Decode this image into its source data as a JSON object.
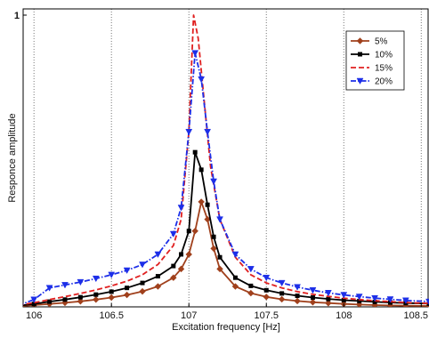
{
  "chart_data": {
    "type": "line",
    "title": "",
    "xlabel": "Excitation frequency [Hz]",
    "ylabel": "Responce amplitude",
    "xlim": [
      105.93,
      108.55
    ],
    "ylim": [
      0,
      1
    ],
    "x_ticks": [
      "106",
      "106.5",
      "107",
      "107.5",
      "108",
      "108.5"
    ],
    "y_ticks": [
      "1"
    ],
    "grid": "vertical-dotted",
    "legend": "top-right",
    "series": [
      {
        "name": "5%",
        "color": "#a0401c",
        "dash": "solid",
        "marker": "diamond",
        "points": [
          [
            105.9,
            0.002
          ],
          [
            106.0,
            0.006
          ],
          [
            106.1,
            0.01
          ],
          [
            106.2,
            0.014
          ],
          [
            106.3,
            0.019
          ],
          [
            106.4,
            0.025
          ],
          [
            106.5,
            0.032
          ],
          [
            106.6,
            0.041
          ],
          [
            106.7,
            0.053
          ],
          [
            106.8,
            0.07
          ],
          [
            106.9,
            0.1
          ],
          [
            106.95,
            0.13
          ],
          [
            107.0,
            0.18
          ],
          [
            107.04,
            0.26
          ],
          [
            107.08,
            0.36
          ],
          [
            107.12,
            0.3
          ],
          [
            107.16,
            0.2
          ],
          [
            107.2,
            0.13
          ],
          [
            107.3,
            0.07
          ],
          [
            107.4,
            0.047
          ],
          [
            107.5,
            0.034
          ],
          [
            107.6,
            0.026
          ],
          [
            107.7,
            0.02
          ],
          [
            107.8,
            0.016
          ],
          [
            107.9,
            0.013
          ],
          [
            108.0,
            0.01
          ],
          [
            108.1,
            0.008
          ],
          [
            108.2,
            0.006
          ],
          [
            108.3,
            0.005
          ],
          [
            108.4,
            0.004
          ],
          [
            108.55,
            0.003
          ]
        ]
      },
      {
        "name": "10%",
        "color": "#000000",
        "dash": "solid",
        "marker": "square",
        "points": [
          [
            105.9,
            0.004
          ],
          [
            106.0,
            0.01
          ],
          [
            106.1,
            0.018
          ],
          [
            106.2,
            0.025
          ],
          [
            106.3,
            0.033
          ],
          [
            106.4,
            0.042
          ],
          [
            106.5,
            0.052
          ],
          [
            106.6,
            0.065
          ],
          [
            106.7,
            0.082
          ],
          [
            106.8,
            0.105
          ],
          [
            106.9,
            0.14
          ],
          [
            106.95,
            0.18
          ],
          [
            107.0,
            0.26
          ],
          [
            107.04,
            0.53
          ],
          [
            107.08,
            0.47
          ],
          [
            107.12,
            0.35
          ],
          [
            107.16,
            0.24
          ],
          [
            107.2,
            0.17
          ],
          [
            107.3,
            0.1
          ],
          [
            107.4,
            0.072
          ],
          [
            107.5,
            0.057
          ],
          [
            107.6,
            0.046
          ],
          [
            107.7,
            0.038
          ],
          [
            107.8,
            0.032
          ],
          [
            107.9,
            0.027
          ],
          [
            108.0,
            0.023
          ],
          [
            108.1,
            0.02
          ],
          [
            108.2,
            0.017
          ],
          [
            108.3,
            0.015
          ],
          [
            108.4,
            0.013
          ],
          [
            108.55,
            0.011
          ]
        ]
      },
      {
        "name": "15%",
        "color": "#e02020",
        "dash": "dashed",
        "marker": "none",
        "points": [
          [
            105.9,
            0.006
          ],
          [
            106.0,
            0.014
          ],
          [
            106.1,
            0.025
          ],
          [
            106.2,
            0.035
          ],
          [
            106.3,
            0.046
          ],
          [
            106.4,
            0.058
          ],
          [
            106.5,
            0.072
          ],
          [
            106.6,
            0.088
          ],
          [
            106.7,
            0.11
          ],
          [
            106.8,
            0.145
          ],
          [
            106.9,
            0.21
          ],
          [
            106.95,
            0.3
          ],
          [
            107.0,
            0.6
          ],
          [
            107.03,
            1.0
          ],
          [
            107.06,
            0.92
          ],
          [
            107.1,
            0.7
          ],
          [
            107.14,
            0.48
          ],
          [
            107.2,
            0.3
          ],
          [
            107.3,
            0.17
          ],
          [
            107.4,
            0.11
          ],
          [
            107.5,
            0.082
          ],
          [
            107.6,
            0.065
          ],
          [
            107.7,
            0.052
          ],
          [
            107.8,
            0.043
          ],
          [
            107.9,
            0.036
          ],
          [
            108.0,
            0.03
          ],
          [
            108.1,
            0.025
          ],
          [
            108.2,
            0.021
          ],
          [
            108.3,
            0.018
          ],
          [
            108.4,
            0.015
          ],
          [
            108.55,
            0.012
          ]
        ]
      },
      {
        "name": "20%",
        "color": "#1c2ee8",
        "dash": "dashdot",
        "marker": "triangle-down",
        "points": [
          [
            105.9,
            0.005
          ],
          [
            106.0,
            0.025
          ],
          [
            106.1,
            0.065
          ],
          [
            106.2,
            0.075
          ],
          [
            106.3,
            0.085
          ],
          [
            106.4,
            0.097
          ],
          [
            106.5,
            0.11
          ],
          [
            106.6,
            0.125
          ],
          [
            106.7,
            0.145
          ],
          [
            106.8,
            0.18
          ],
          [
            106.9,
            0.25
          ],
          [
            106.95,
            0.34
          ],
          [
            107.0,
            0.6
          ],
          [
            107.04,
            0.87
          ],
          [
            107.08,
            0.78
          ],
          [
            107.12,
            0.6
          ],
          [
            107.16,
            0.43
          ],
          [
            107.2,
            0.3
          ],
          [
            107.3,
            0.18
          ],
          [
            107.4,
            0.13
          ],
          [
            107.5,
            0.1
          ],
          [
            107.6,
            0.082
          ],
          [
            107.7,
            0.068
          ],
          [
            107.8,
            0.057
          ],
          [
            107.9,
            0.048
          ],
          [
            108.0,
            0.041
          ],
          [
            108.1,
            0.035
          ],
          [
            108.2,
            0.03
          ],
          [
            108.3,
            0.026
          ],
          [
            108.4,
            0.022
          ],
          [
            108.55,
            0.018
          ]
        ]
      }
    ]
  }
}
